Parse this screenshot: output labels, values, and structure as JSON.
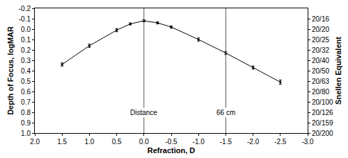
{
  "chart_data": {
    "type": "line",
    "x_title": "Refraction, D",
    "y_title": "Depth of Focus, logMAR",
    "y2_title": "Snellen Equivalent",
    "x": [
      1.5,
      1.0,
      0.5,
      0.25,
      0,
      -0.25,
      -0.5,
      -1.0,
      -1.5,
      -2.0,
      -2.5
    ],
    "values": [
      0.34,
      0.16,
      0.01,
      -0.05,
      -0.08,
      -0.06,
      -0.02,
      0.1,
      0.23,
      0.37,
      0.51
    ],
    "errors": [
      0.015,
      0.015,
      0.015,
      0.01,
      0.01,
      0.01,
      0.01,
      0.015,
      0.015,
      0.015,
      0.02
    ],
    "color": "#000000",
    "marker": "circle",
    "line_style": "solid",
    "grid": false,
    "xlim": [
      2.0,
      -3.0
    ],
    "xticks": [
      {
        "value": 2,
        "label": "2.0"
      },
      1.5,
      {
        "value": 1,
        "label": "1.0"
      },
      0.5,
      {
        "value": 0,
        "label": "0.0"
      },
      -0.5,
      {
        "value": -1,
        "label": "-1.0"
      },
      -1.5,
      {
        "value": -2,
        "label": "-2.0"
      },
      -2.5,
      {
        "value": -3,
        "label": "-3.0"
      }
    ],
    "ylim": [
      1.0,
      -0.2
    ],
    "yticks": [
      -0.2,
      -0.1,
      {
        "value": 0,
        "label": "0.0"
      },
      0.1,
      0.2,
      0.3,
      0.4,
      0.5,
      0.6,
      0.7,
      0.8,
      0.9,
      {
        "value": 1,
        "label": "1.0"
      }
    ],
    "y2lim": [
      1.0,
      -0.2
    ],
    "y2ticks": [
      {
        "value": -0.1,
        "label": "20/16"
      },
      {
        "value": 0,
        "label": "20/20"
      },
      {
        "value": 0.1,
        "label": "20/25"
      },
      {
        "value": 0.2,
        "label": "20/32"
      },
      {
        "value": 0.3,
        "label": "20/40"
      },
      {
        "value": 0.4,
        "label": "20/50"
      },
      {
        "value": 0.5,
        "label": "20/63"
      },
      {
        "value": 0.6,
        "label": "20/80"
      },
      {
        "value": 0.7,
        "label": "20/100"
      },
      {
        "value": 0.8,
        "label": "20/126"
      },
      {
        "value": 0.9,
        "label": "20/159"
      },
      {
        "value": 1.0,
        "label": "20/200"
      }
    ],
    "reference_lines": [
      {
        "x": 0,
        "label": "Distance"
      },
      {
        "x": -1.5,
        "label": "66 cm"
      }
    ]
  }
}
